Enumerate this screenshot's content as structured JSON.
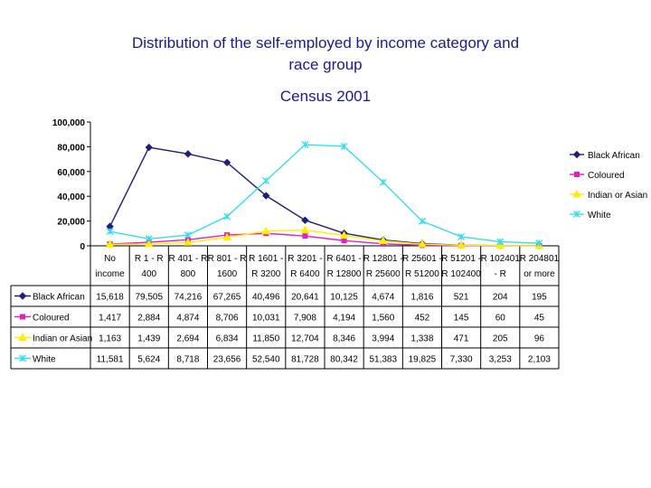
{
  "chart_data": {
    "type": "line",
    "title": "Distribution of the self-employed by income category and race group",
    "title_line1": "Distribution of the self-employed by income category and",
    "title_line2": "race group",
    "subtitle": "Census 2001",
    "categories": [
      [
        "No",
        "income"
      ],
      [
        "R 1 - R",
        "400"
      ],
      [
        "R 401 - R",
        "800"
      ],
      [
        "R 801 - R",
        "1600"
      ],
      [
        "R 1601 -",
        "R 3200"
      ],
      [
        "R 3201 -",
        "R 6400"
      ],
      [
        "R 6401 -",
        "R 12800"
      ],
      [
        "R 12801 -",
        "R 25600"
      ],
      [
        "R 25601 -",
        "R 51200"
      ],
      [
        "R 51201 -",
        "R 102400"
      ],
      [
        "R 102401",
        "- R"
      ],
      [
        "R 204801",
        "or more"
      ]
    ],
    "ylim": [
      0,
      100000
    ],
    "yticks": [
      "0",
      "20,000",
      "40,000",
      "60,000",
      "80,000",
      "100,000"
    ],
    "grid": false,
    "legend_position": "right",
    "series": [
      {
        "name": "Black African",
        "color": "#1f1f7a",
        "marker": "diamond",
        "values": [
          15618,
          79505,
          74216,
          67265,
          40496,
          20641,
          10125,
          4674,
          1816,
          521,
          204,
          195
        ],
        "labels": [
          "15,618",
          "79,505",
          "74,216",
          "67,265",
          "40,496",
          "20,641",
          "10,125",
          "4,674",
          "1,816",
          "521",
          "204",
          "195"
        ]
      },
      {
        "name": "Coloured",
        "color": "#e020c0",
        "marker": "square",
        "values": [
          1417,
          2884,
          4874,
          8706,
          10031,
          7908,
          4194,
          1560,
          452,
          145,
          60,
          45
        ],
        "labels": [
          "1,417",
          "2,884",
          "4,874",
          "8,706",
          "10,031",
          "7,908",
          "4,194",
          "1,560",
          "452",
          "145",
          "60",
          "45"
        ]
      },
      {
        "name": "Indian or Asian",
        "color": "#ffee00",
        "marker": "triangle",
        "values": [
          1163,
          1439,
          2694,
          6834,
          11850,
          12704,
          8346,
          3994,
          1338,
          471,
          205,
          96
        ],
        "labels": [
          "1,163",
          "1,439",
          "2,694",
          "6,834",
          "11,850",
          "12,704",
          "8,346",
          "3,994",
          "1,338",
          "471",
          "205",
          "96"
        ]
      },
      {
        "name": "White",
        "color": "#33ddee",
        "marker": "x",
        "values": [
          11581,
          5624,
          8718,
          23656,
          52540,
          81728,
          80342,
          51383,
          19825,
          7330,
          3253,
          2103
        ],
        "labels": [
          "11,581",
          "5,624",
          "8,718",
          "23,656",
          "52,540",
          "81,728",
          "80,342",
          "51,383",
          "19,825",
          "7,330",
          "3,253",
          "2,103"
        ]
      }
    ]
  }
}
